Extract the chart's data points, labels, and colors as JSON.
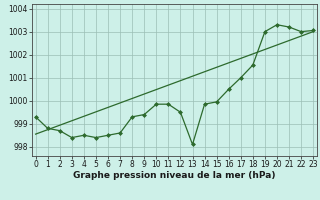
{
  "x": [
    0,
    1,
    2,
    3,
    4,
    5,
    6,
    7,
    8,
    9,
    10,
    11,
    12,
    13,
    14,
    15,
    16,
    17,
    18,
    19,
    20,
    21,
    22,
    23
  ],
  "y": [
    999.3,
    998.8,
    998.7,
    998.4,
    998.5,
    998.4,
    998.5,
    998.6,
    999.3,
    999.4,
    999.85,
    999.85,
    999.5,
    998.1,
    999.85,
    999.95,
    1000.5,
    1001.0,
    1001.55,
    1003.0,
    1003.3,
    1003.2,
    1003.0,
    1003.05
  ],
  "trend_x": [
    0,
    23
  ],
  "trend_y": [
    998.55,
    1003.0
  ],
  "line_color": "#2d6a2d",
  "bg_color": "#cdf0e8",
  "grid_color": "#9bbfb5",
  "xlabel": "Graphe pression niveau de la mer (hPa)",
  "ylim": [
    997.6,
    1004.2
  ],
  "xlim": [
    -0.3,
    23.3
  ],
  "yticks": [
    998,
    999,
    1000,
    1001,
    1002,
    1003,
    1004
  ],
  "xticks": [
    0,
    1,
    2,
    3,
    4,
    5,
    6,
    7,
    8,
    9,
    10,
    11,
    12,
    13,
    14,
    15,
    16,
    17,
    18,
    19,
    20,
    21,
    22,
    23
  ],
  "xlabel_fontsize": 6.5,
  "tick_fontsize": 5.5
}
